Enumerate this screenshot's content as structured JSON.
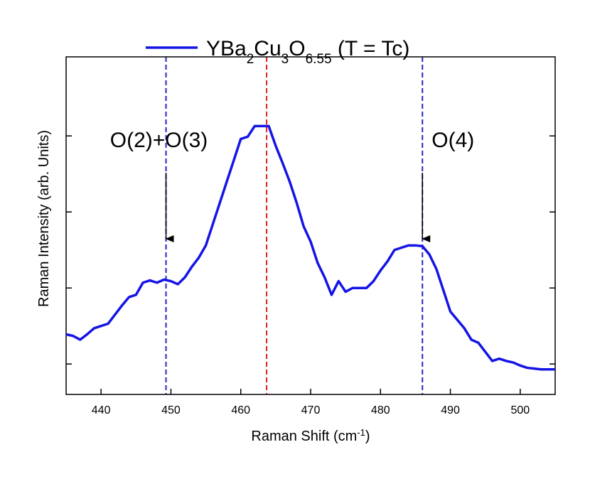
{
  "chart_data": {
    "type": "line",
    "x_label": "Raman Shift (cm-1)",
    "y_label": "Raman Intensity (arb. Units)",
    "x": [
      435,
      436,
      437,
      438,
      439,
      440,
      441,
      442,
      443,
      444,
      445,
      446,
      447,
      448,
      449,
      450,
      451,
      452,
      453,
      454,
      455,
      456,
      457,
      458,
      459,
      460,
      461,
      462,
      463,
      464,
      465,
      466,
      467,
      468,
      469,
      470,
      471,
      472,
      473,
      474,
      475,
      476,
      477,
      478,
      479,
      480,
      481,
      482,
      483,
      484,
      485,
      486,
      487,
      488,
      489,
      490,
      491,
      492,
      493,
      494,
      495,
      496,
      497,
      498,
      499,
      500,
      501,
      502,
      503,
      504,
      505
    ],
    "series": [
      {
        "name": "YBa2Cu3O6.55 (T = Tc)",
        "color": "#1414e6",
        "values": [
          1.39,
          1.37,
          1.32,
          1.39,
          1.47,
          1.5,
          1.53,
          1.65,
          1.77,
          1.88,
          1.91,
          2.07,
          2.1,
          2.07,
          2.11,
          2.09,
          2.05,
          2.14,
          2.28,
          2.4,
          2.56,
          2.84,
          3.12,
          3.4,
          3.68,
          3.96,
          3.99,
          4.13,
          4.13,
          4.13,
          3.87,
          3.64,
          3.4,
          3.12,
          2.81,
          2.61,
          2.33,
          2.14,
          1.91,
          2.09,
          1.95,
          2.0,
          2.0,
          2.0,
          2.09,
          2.23,
          2.35,
          2.5,
          2.53,
          2.56,
          2.56,
          2.55,
          2.44,
          2.25,
          1.97,
          1.69,
          1.58,
          1.47,
          1.32,
          1.28,
          1.16,
          1.04,
          1.07,
          1.04,
          1.02,
          0.98,
          0.95,
          0.94,
          0.93,
          0.93,
          0.93
        ]
      }
    ],
    "xlim": [
      435,
      505
    ],
    "xticks": [
      440,
      450,
      460,
      470,
      480,
      490,
      500
    ],
    "ylim": [
      0.6,
      5.04
    ],
    "yticks": [
      1,
      2,
      3,
      4
    ],
    "vlines": [
      {
        "x": 449.3,
        "color": "#2424c8"
      },
      {
        "x": 463.7,
        "color": "#e02020"
      },
      {
        "x": 486.0,
        "color": "#2424c8"
      }
    ],
    "annotations": [
      {
        "text": "O(2)+O(3)",
        "x": 449.3
      },
      {
        "text": "O(4)",
        "x": 486.0
      }
    ]
  }
}
